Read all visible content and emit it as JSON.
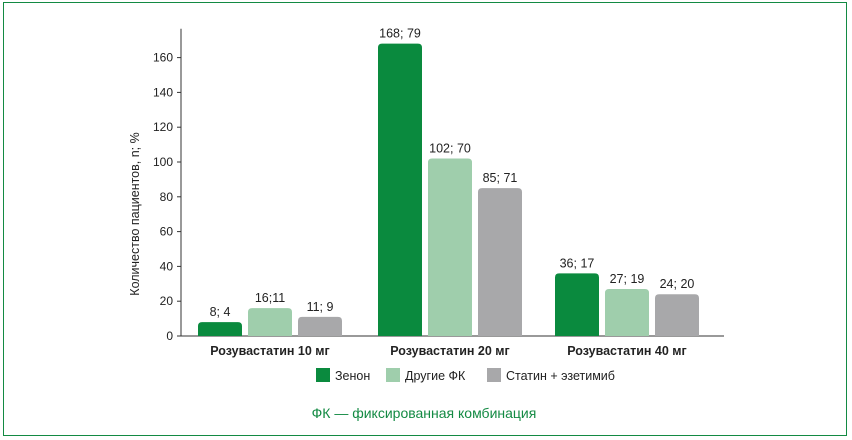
{
  "chart_data": {
    "type": "bar",
    "ylabel": "Количество пациентов, n; %",
    "ylim": [
      0,
      180
    ],
    "yticks": [
      0,
      20,
      40,
      60,
      80,
      100,
      120,
      140,
      160
    ],
    "categories": [
      "Розувастатин  10 мг",
      "Розувастатин  20 мг",
      "Розувастатин  40 мг"
    ],
    "series": [
      {
        "name": "Зенон",
        "color": "#0a8a3e",
        "values": [
          8,
          168,
          36
        ],
        "labels": [
          "8; 4",
          "168; 79",
          "36; 17"
        ]
      },
      {
        "name": "Другие ФК",
        "color": "#9fceac",
        "values": [
          16,
          102,
          27
        ],
        "labels": [
          "16;11",
          "102; 70",
          "27; 19"
        ]
      },
      {
        "name": "Статин + эзетимиб",
        "color": "#a8a8aa",
        "values": [
          11,
          85,
          24
        ],
        "labels": [
          "11; 9",
          "85; 71",
          "24; 20"
        ]
      }
    ],
    "grid": false,
    "legend": "bottom"
  },
  "footnote": "ФК — фиксированная комбинация"
}
